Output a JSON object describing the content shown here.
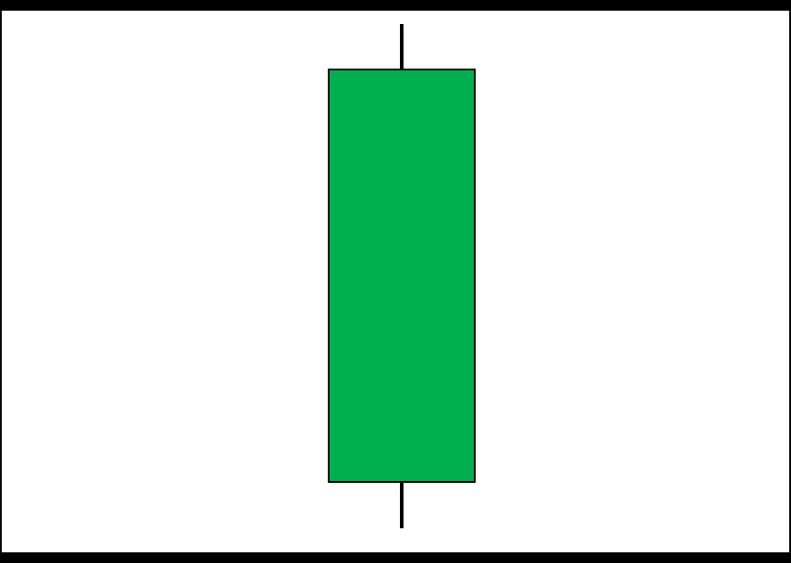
{
  "diagram": {
    "kind": "single candlestick (bullish)",
    "colors": {
      "background": "#ffffff",
      "border": "#000000",
      "body_fill": "#00b050",
      "body_outline": "#000000",
      "wick": "#000000"
    }
  }
}
